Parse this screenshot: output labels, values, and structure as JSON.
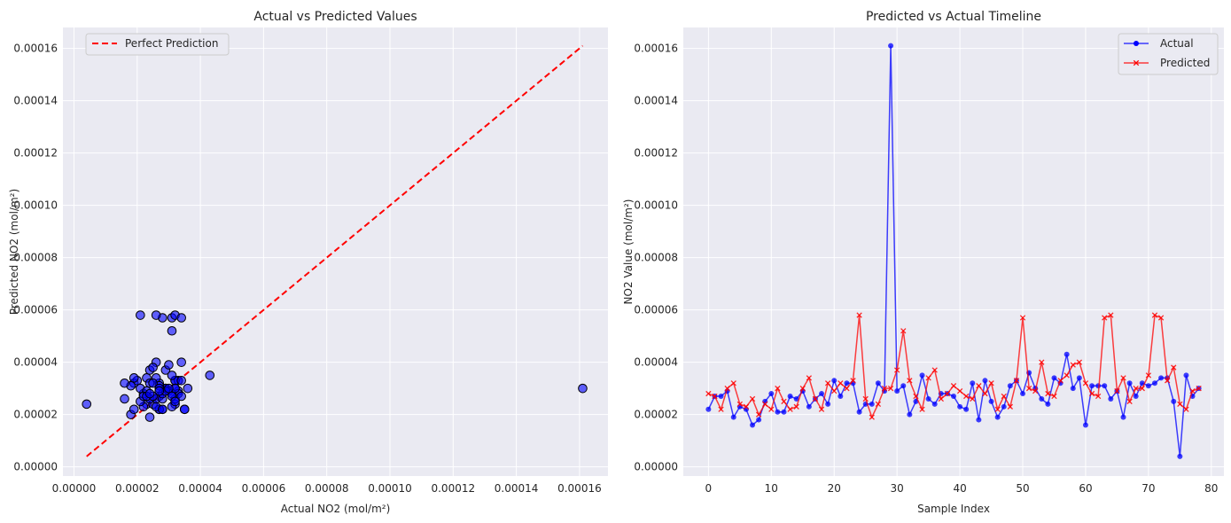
{
  "colors": {
    "plot_bg": "#eaeaf2",
    "grid": "#ffffff",
    "actual": "#0000ff",
    "predicted": "#ff0000",
    "scatter_edge": "#000000",
    "perfect_line": "#ff0000"
  },
  "chart_data": [
    {
      "type": "scatter",
      "title": "Actual vs Predicted Values",
      "xlabel": "Actual NO2 (mol/m²)",
      "ylabel": "Predicted NO2 (mol/m²)",
      "xlim": [
        -3.5e-06,
        0.000169
      ],
      "ylim": [
        -3.5e-06,
        0.000168
      ],
      "xticks": [
        0.0,
        2e-05,
        4e-05,
        6e-05,
        8e-05,
        0.0001,
        0.00012,
        0.00014,
        0.00016
      ],
      "xtick_labels": [
        "0.00000",
        "0.00002",
        "0.00004",
        "0.00006",
        "0.00008",
        "0.00010",
        "0.00012",
        "0.00014",
        "0.00016"
      ],
      "yticks": [
        0.0,
        2e-05,
        4e-05,
        6e-05,
        8e-05,
        0.0001,
        0.00012,
        0.00014,
        0.00016
      ],
      "ytick_labels": [
        "0.00000",
        "0.00002",
        "0.00004",
        "0.00006",
        "0.00008",
        "0.00010",
        "0.00012",
        "0.00014",
        "0.00016"
      ],
      "grid": true,
      "legend_position": "top-left",
      "legend": [
        "Perfect Prediction"
      ],
      "perfect_line": [
        [
          4e-06,
          4e-06
        ],
        [
          0.000161,
          0.000161
        ]
      ],
      "points": [
        [
          2.2e-05,
          2.8e-05
        ],
        [
          2.7e-05,
          2.7e-05
        ],
        [
          2.7e-05,
          2.2e-05
        ],
        [
          2.9e-05,
          3e-05
        ],
        [
          1.9e-05,
          3.2e-05
        ],
        [
          2.3e-05,
          2.4e-05
        ],
        [
          2.2e-05,
          2.3e-05
        ],
        [
          1.6e-05,
          2.6e-05
        ],
        [
          1.8e-05,
          2e-05
        ],
        [
          2.5e-05,
          2.4e-05
        ],
        [
          2.8e-05,
          2.2e-05
        ],
        [
          2.1e-05,
          3e-05
        ],
        [
          2.1e-05,
          2.5e-05
        ],
        [
          2.7e-05,
          2.2e-05
        ],
        [
          2.6e-05,
          2.3e-05
        ],
        [
          2.9e-05,
          3e-05
        ],
        [
          2.3e-05,
          3.4e-05
        ],
        [
          2.6e-05,
          2.6e-05
        ],
        [
          2.8e-05,
          2.2e-05
        ],
        [
          2.4e-05,
          3.2e-05
        ],
        [
          3.3e-05,
          2.9e-05
        ],
        [
          2.7e-05,
          3.2e-05
        ],
        [
          3.2e-05,
          3e-05
        ],
        [
          3.2e-05,
          3.3e-05
        ],
        [
          2.1e-05,
          5.8e-05
        ],
        [
          2.4e-05,
          2.6e-05
        ],
        [
          2.4e-05,
          1.9e-05
        ],
        [
          3.2e-05,
          2.4e-05
        ],
        [
          2.9e-05,
          3e-05
        ],
        [
          0.000161,
          3e-05
        ],
        [
          2.9e-05,
          3.7e-05
        ],
        [
          3.1e-05,
          5.2e-05
        ],
        [
          2e-05,
          3.3e-05
        ],
        [
          2.5e-05,
          2.7e-05
        ],
        [
          3.5e-05,
          2.2e-05
        ],
        [
          2.6e-05,
          3.4e-05
        ],
        [
          2.4e-05,
          3.7e-05
        ],
        [
          2.8e-05,
          2.6e-05
        ],
        [
          2.8e-05,
          2.8e-05
        ],
        [
          2.7e-05,
          3.1e-05
        ],
        [
          2.3e-05,
          2.9e-05
        ],
        [
          2.2e-05,
          2.7e-05
        ],
        [
          3.2e-05,
          2.6e-05
        ],
        [
          1.8e-05,
          3.1e-05
        ],
        [
          3.3e-05,
          2.8e-05
        ],
        [
          2.5e-05,
          3.2e-05
        ],
        [
          1.9e-05,
          2.2e-05
        ],
        [
          2.3e-05,
          2.7e-05
        ],
        [
          3.1e-05,
          2.3e-05
        ],
        [
          3.3e-05,
          3.3e-05
        ],
        [
          2.8e-05,
          5.7e-05
        ],
        [
          3.6e-05,
          3e-05
        ],
        [
          3e-05,
          2.9e-05
        ],
        [
          2.6e-05,
          4e-05
        ],
        [
          2.4e-05,
          2.8e-05
        ],
        [
          3.4e-05,
          2.7e-05
        ],
        [
          3.2e-05,
          3.3e-05
        ],
        [
          4.3e-05,
          3.5e-05
        ],
        [
          3e-05,
          3.9e-05
        ],
        [
          3.4e-05,
          4e-05
        ],
        [
          1.6e-05,
          3.2e-05
        ],
        [
          3.1e-05,
          2.8e-05
        ],
        [
          3.1e-05,
          2.7e-05
        ],
        [
          3.1e-05,
          5.7e-05
        ],
        [
          2.6e-05,
          5.8e-05
        ],
        [
          2.9e-05,
          2.9e-05
        ],
        [
          1.9e-05,
          3.4e-05
        ],
        [
          3.2e-05,
          2.5e-05
        ],
        [
          2.7e-05,
          3e-05
        ],
        [
          3.2e-05,
          3e-05
        ],
        [
          3.1e-05,
          3.5e-05
        ],
        [
          3.2e-05,
          5.8e-05
        ],
        [
          3.4e-05,
          5.7e-05
        ],
        [
          3.4e-05,
          3.3e-05
        ],
        [
          2.5e-05,
          3.8e-05
        ],
        [
          4e-06,
          2.4e-05
        ],
        [
          3.5e-05,
          2.2e-05
        ],
        [
          2.7e-05,
          2.9e-05
        ],
        [
          3e-05,
          3e-05
        ]
      ]
    },
    {
      "type": "line",
      "title": "Predicted vs Actual Timeline",
      "xlabel": "Sample Index",
      "ylabel": "NO2 Value (mol/m²)",
      "xlim": [
        -4,
        82
      ],
      "ylim": [
        -3.5e-06,
        0.000168
      ],
      "xticks": [
        0,
        10,
        20,
        30,
        40,
        50,
        60,
        70,
        80
      ],
      "xtick_labels": [
        "0",
        "10",
        "20",
        "30",
        "40",
        "50",
        "60",
        "70",
        "80"
      ],
      "yticks": [
        0.0,
        2e-05,
        4e-05,
        6e-05,
        8e-05,
        0.0001,
        0.00012,
        0.00014,
        0.00016
      ],
      "ytick_labels": [
        "0.00000",
        "0.00002",
        "0.00004",
        "0.00006",
        "0.00008",
        "0.00010",
        "0.00012",
        "0.00014",
        "0.00016"
      ],
      "grid": true,
      "legend_position": "top-right",
      "series": [
        {
          "name": "Actual",
          "color": "#0000ff",
          "marker": "circle",
          "values": [
            2.2e-05,
            2.7e-05,
            2.7e-05,
            2.9e-05,
            1.9e-05,
            2.3e-05,
            2.2e-05,
            1.6e-05,
            1.8e-05,
            2.5e-05,
            2.8e-05,
            2.1e-05,
            2.1e-05,
            2.7e-05,
            2.6e-05,
            2.9e-05,
            2.3e-05,
            2.6e-05,
            2.8e-05,
            2.4e-05,
            3.3e-05,
            2.7e-05,
            3.2e-05,
            3.2e-05,
            2.1e-05,
            2.4e-05,
            2.4e-05,
            3.2e-05,
            2.9e-05,
            0.000161,
            2.9e-05,
            3.1e-05,
            2e-05,
            2.5e-05,
            3.5e-05,
            2.6e-05,
            2.4e-05,
            2.8e-05,
            2.8e-05,
            2.7e-05,
            2.3e-05,
            2.2e-05,
            3.2e-05,
            1.8e-05,
            3.3e-05,
            2.5e-05,
            1.9e-05,
            2.3e-05,
            3.1e-05,
            3.3e-05,
            2.8e-05,
            3.6e-05,
            3e-05,
            2.6e-05,
            2.4e-05,
            3.4e-05,
            3.2e-05,
            4.3e-05,
            3e-05,
            3.4e-05,
            1.6e-05,
            3.1e-05,
            3.1e-05,
            3.1e-05,
            2.6e-05,
            2.9e-05,
            1.9e-05,
            3.2e-05,
            2.7e-05,
            3.2e-05,
            3.1e-05,
            3.2e-05,
            3.4e-05,
            3.4e-05,
            2.5e-05,
            4e-06,
            3.5e-05,
            2.7e-05,
            3e-05
          ]
        },
        {
          "name": "Predicted",
          "color": "#ff0000",
          "marker": "x",
          "values": [
            2.8e-05,
            2.7e-05,
            2.2e-05,
            3e-05,
            3.2e-05,
            2.4e-05,
            2.3e-05,
            2.6e-05,
            2e-05,
            2.4e-05,
            2.2e-05,
            3e-05,
            2.5e-05,
            2.2e-05,
            2.3e-05,
            3e-05,
            3.4e-05,
            2.6e-05,
            2.2e-05,
            3.2e-05,
            2.9e-05,
            3.2e-05,
            3e-05,
            3.3e-05,
            5.8e-05,
            2.6e-05,
            1.9e-05,
            2.4e-05,
            3e-05,
            3e-05,
            3.7e-05,
            5.2e-05,
            3.3e-05,
            2.7e-05,
            2.2e-05,
            3.4e-05,
            3.7e-05,
            2.6e-05,
            2.8e-05,
            3.1e-05,
            2.9e-05,
            2.7e-05,
            2.6e-05,
            3.1e-05,
            2.8e-05,
            3.2e-05,
            2.2e-05,
            2.7e-05,
            2.3e-05,
            3.3e-05,
            5.7e-05,
            3e-05,
            2.9e-05,
            4e-05,
            2.8e-05,
            2.7e-05,
            3.3e-05,
            3.5e-05,
            3.9e-05,
            4e-05,
            3.2e-05,
            2.8e-05,
            2.7e-05,
            5.7e-05,
            5.8e-05,
            2.9e-05,
            3.4e-05,
            2.5e-05,
            3e-05,
            3e-05,
            3.5e-05,
            5.8e-05,
            5.7e-05,
            3.3e-05,
            3.8e-05,
            2.4e-05,
            2.2e-05,
            2.9e-05,
            3e-05
          ]
        }
      ]
    }
  ]
}
